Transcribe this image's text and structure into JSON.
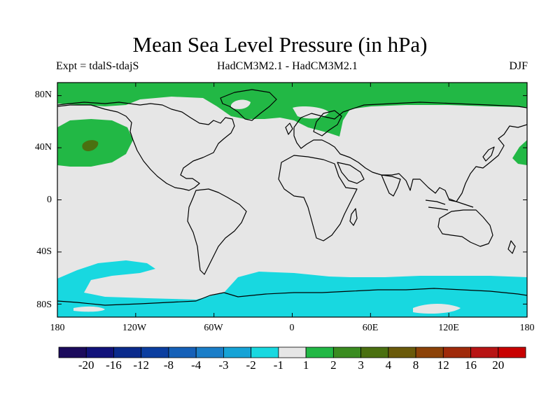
{
  "title": "Mean Sea Level Pressure (in hPa)",
  "subtitle_left": "Expt = tdalS-tdajS",
  "subtitle_center": "HadCM3M2.1 - HadCM3M2.1",
  "subtitle_right": "DJF",
  "lat_ticks": [
    "80N",
    "40N",
    "0",
    "40S",
    "80S"
  ],
  "lon_ticks": [
    "180",
    "120W",
    "60W",
    "0",
    "60E",
    "120E",
    "180"
  ],
  "colorbar": {
    "labels": [
      "-20",
      "-16",
      "-12",
      "-8",
      "-4",
      "-3",
      "-2",
      "-1",
      "1",
      "2",
      "3",
      "4",
      "8",
      "12",
      "16",
      "20"
    ],
    "colors": [
      "#1b0a5c",
      "#11127a",
      "#0a2a8c",
      "#0b3ea0",
      "#1560b8",
      "#1a7ec8",
      "#16a3d6",
      "#18d8e0",
      "#e6e6e6",
      "#22b845",
      "#3a8c20",
      "#4a7010",
      "#6a5a0a",
      "#8c4208",
      "#a02a0a",
      "#b81414",
      "#c80000"
    ]
  },
  "map": {
    "background_color": "#e6e6e6",
    "regions": [
      {
        "name": "arctic-positive-anomaly",
        "value_range": "1 to 2",
        "color": "#22b845"
      },
      {
        "name": "north-pacific-positive-anomaly",
        "value_range": "1 to 2",
        "color": "#22b845"
      },
      {
        "name": "north-pacific-core",
        "value_range": "3 to 4",
        "color": "#4a7010"
      },
      {
        "name": "southern-ocean-negative-anomaly",
        "value_range": "-2 to -1",
        "color": "#18d8e0"
      }
    ]
  }
}
